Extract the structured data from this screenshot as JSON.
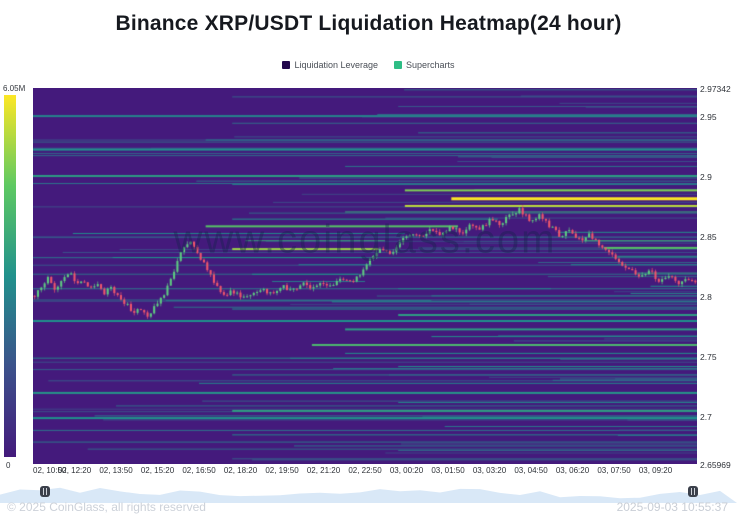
{
  "title": "Binance XRP/USDT Liquidation Heatmap(24 hour)",
  "legend": {
    "items": [
      {
        "label": "Liquidation Leverage",
        "color": "#23094d"
      },
      {
        "label": "Supercharts",
        "color": "#2ebd85"
      }
    ]
  },
  "colorbar": {
    "max_label": "6.05M",
    "min_label": "0"
  },
  "watermark": "www.coinglass.com",
  "footer": {
    "copyright": "© 2025 CoinGlass, all rights reserved",
    "timestamp": "2025-09-03 10:55:37"
  },
  "chart_data": {
    "type": "heatmap",
    "title": "Binance XRP/USDT Liquidation Heatmap(24 hour)",
    "legend_entries": [
      "Liquidation Leverage",
      "Supercharts"
    ],
    "y_range": [
      2.65969,
      2.97342
    ],
    "y_ticks": [
      [
        "2.97342",
        2.97342
      ],
      [
        "2.95",
        2.95
      ],
      [
        "2.9",
        2.9
      ],
      [
        "2.85",
        2.85
      ],
      [
        "2.8",
        2.8
      ],
      [
        "2.75",
        2.75
      ],
      [
        "2.7",
        2.7
      ],
      [
        "2.65969",
        2.65969
      ]
    ],
    "x_labels": [
      "02, 10:50",
      "02, 12:20",
      "02, 13:50",
      "02, 15:20",
      "02, 16:50",
      "02, 18:20",
      "02, 19:50",
      "02, 21:20",
      "02, 22:50",
      "03, 00:20",
      "03, 01:50",
      "03, 03:20",
      "03, 04:50",
      "03, 06:20",
      "03, 07:50",
      "03, 09:20"
    ],
    "colorbar": {
      "min": 0,
      "max": 6050000,
      "min_label": "0",
      "max_label": "6.05M"
    },
    "colors": {
      "candle_up": "#5ecb81",
      "candle_down": "#f0566c",
      "viridis": [
        [
          0,
          "#441a7c"
        ],
        [
          0.25,
          "#3b528b"
        ],
        [
          0.5,
          "#21918c"
        ],
        [
          0.75,
          "#5ec962"
        ],
        [
          1,
          "#fde725"
        ]
      ]
    },
    "heatmap_bands": [
      [
        2.966,
        0.3,
        1,
        0.3,
        1
      ],
      [
        2.958,
        0.55,
        1,
        0.28,
        1
      ],
      [
        2.95,
        0.0,
        1,
        0.45,
        2
      ],
      [
        2.944,
        0.3,
        1,
        0.35,
        1
      ],
      [
        2.936,
        0.58,
        1,
        0.38,
        1
      ],
      [
        2.93,
        0.26,
        1,
        0.42,
        1
      ],
      [
        2.922,
        0.0,
        1,
        0.5,
        2
      ],
      [
        2.916,
        0.64,
        1,
        0.35,
        1
      ],
      [
        2.908,
        0.47,
        1,
        0.4,
        1
      ],
      [
        2.9,
        0.0,
        1,
        0.55,
        2
      ],
      [
        2.893,
        0.3,
        1,
        0.45,
        1
      ],
      [
        2.888,
        0.56,
        1,
        0.8,
        2
      ],
      [
        2.881,
        0.63,
        1,
        1.0,
        3
      ],
      [
        2.875,
        0.56,
        1,
        0.9,
        2
      ],
      [
        2.87,
        0.47,
        1,
        0.6,
        1
      ],
      [
        2.864,
        0.3,
        0.7,
        0.5,
        1
      ],
      [
        2.858,
        0.26,
        0.64,
        0.72,
        2
      ],
      [
        2.852,
        0.06,
        0.56,
        0.48,
        1
      ],
      [
        2.846,
        0.32,
        0.53,
        0.6,
        1
      ],
      [
        2.839,
        0.3,
        0.52,
        0.85,
        2
      ],
      [
        2.832,
        0.12,
        0.5,
        0.5,
        1
      ],
      [
        2.826,
        0.4,
        0.51,
        0.42,
        1
      ],
      [
        2.818,
        0.33,
        0.49,
        0.5,
        1
      ],
      [
        2.853,
        0.79,
        1,
        0.5,
        1
      ],
      [
        2.846,
        0.83,
        1,
        0.62,
        1
      ],
      [
        2.84,
        0.86,
        1,
        0.72,
        2
      ],
      [
        2.833,
        0.88,
        1,
        0.52,
        1
      ],
      [
        2.826,
        0.81,
        1,
        0.45,
        1
      ],
      [
        2.819,
        0.91,
        1,
        0.55,
        1
      ],
      [
        2.812,
        0.36,
        0.5,
        0.42,
        1
      ],
      [
        2.808,
        0.93,
        1,
        0.5,
        1
      ],
      [
        2.806,
        0.55,
        0.78,
        0.45,
        1
      ],
      [
        2.802,
        0.9,
        1,
        0.45,
        1
      ],
      [
        2.8,
        0.6,
        1,
        0.4,
        1
      ],
      [
        2.796,
        0.2,
        0.6,
        0.4,
        1
      ],
      [
        2.795,
        0.45,
        1,
        0.5,
        1
      ],
      [
        2.789,
        0.3,
        1,
        0.48,
        1
      ],
      [
        2.784,
        0.55,
        1,
        0.55,
        2
      ],
      [
        2.779,
        0.0,
        1,
        0.5,
        2
      ],
      [
        2.772,
        0.47,
        1,
        0.55,
        2
      ],
      [
        2.766,
        0.6,
        1,
        0.5,
        1
      ],
      [
        2.759,
        0.42,
        1,
        0.68,
        2
      ],
      [
        2.752,
        0.47,
        1,
        0.5,
        1
      ],
      [
        2.748,
        0.0,
        1,
        0.44,
        1
      ],
      [
        2.741,
        0.55,
        1,
        0.5,
        1
      ],
      [
        2.734,
        0.3,
        1,
        0.4,
        1
      ],
      [
        2.727,
        0.25,
        1,
        0.46,
        1
      ],
      [
        2.719,
        0.0,
        1,
        0.52,
        2
      ],
      [
        2.711,
        0.55,
        1,
        0.45,
        1
      ],
      [
        2.704,
        0.3,
        1,
        0.56,
        2
      ],
      [
        2.698,
        0.0,
        1,
        0.5,
        2
      ],
      [
        2.691,
        0.62,
        1,
        0.4,
        1
      ],
      [
        2.684,
        0.3,
        1,
        0.45,
        1
      ],
      [
        2.678,
        0.0,
        1,
        0.4,
        1
      ],
      [
        2.671,
        0.55,
        1,
        0.34,
        1
      ],
      [
        2.664,
        0.3,
        1,
        0.3,
        1
      ]
    ],
    "price_path": [
      [
        0.0,
        2.8
      ],
      [
        0.01,
        2.808
      ],
      [
        0.02,
        2.815
      ],
      [
        0.03,
        2.805
      ],
      [
        0.04,
        2.812
      ],
      [
        0.055,
        2.818
      ],
      [
        0.065,
        2.81
      ],
      [
        0.075,
        2.812
      ],
      [
        0.085,
        2.806
      ],
      [
        0.095,
        2.81
      ],
      [
        0.105,
        2.802
      ],
      [
        0.115,
        2.806
      ],
      [
        0.13,
        2.798
      ],
      [
        0.14,
        2.792
      ],
      [
        0.15,
        2.786
      ],
      [
        0.16,
        2.79
      ],
      [
        0.17,
        2.782
      ],
      [
        0.18,
        2.79
      ],
      [
        0.195,
        2.8
      ],
      [
        0.205,
        2.812
      ],
      [
        0.215,
        2.828
      ],
      [
        0.225,
        2.84
      ],
      [
        0.235,
        2.846
      ],
      [
        0.245,
        2.836
      ],
      [
        0.255,
        2.828
      ],
      [
        0.265,
        2.82
      ],
      [
        0.275,
        2.808
      ],
      [
        0.285,
        2.8
      ],
      [
        0.3,
        2.804
      ],
      [
        0.315,
        2.798
      ],
      [
        0.33,
        2.802
      ],
      [
        0.345,
        2.806
      ],
      [
        0.36,
        2.8
      ],
      [
        0.375,
        2.808
      ],
      [
        0.39,
        2.804
      ],
      [
        0.405,
        2.81
      ],
      [
        0.42,
        2.806
      ],
      [
        0.435,
        2.812
      ],
      [
        0.45,
        2.808
      ],
      [
        0.465,
        2.814
      ],
      [
        0.48,
        2.81
      ],
      [
        0.495,
        2.82
      ],
      [
        0.51,
        2.832
      ],
      [
        0.525,
        2.84
      ],
      [
        0.54,
        2.836
      ],
      [
        0.555,
        2.846
      ],
      [
        0.57,
        2.852
      ],
      [
        0.585,
        2.848
      ],
      [
        0.6,
        2.855
      ],
      [
        0.615,
        2.85
      ],
      [
        0.63,
        2.858
      ],
      [
        0.645,
        2.852
      ],
      [
        0.66,
        2.86
      ],
      [
        0.675,
        2.856
      ],
      [
        0.69,
        2.864
      ],
      [
        0.705,
        2.86
      ],
      [
        0.72,
        2.868
      ],
      [
        0.735,
        2.872
      ],
      [
        0.75,
        2.862
      ],
      [
        0.765,
        2.868
      ],
      [
        0.78,
        2.858
      ],
      [
        0.795,
        2.85
      ],
      [
        0.81,
        2.856
      ],
      [
        0.825,
        2.846
      ],
      [
        0.84,
        2.852
      ],
      [
        0.855,
        2.842
      ],
      [
        0.87,
        2.835
      ],
      [
        0.885,
        2.828
      ],
      [
        0.9,
        2.822
      ],
      [
        0.915,
        2.816
      ],
      [
        0.93,
        2.822
      ],
      [
        0.945,
        2.812
      ],
      [
        0.96,
        2.818
      ],
      [
        0.975,
        2.81
      ],
      [
        0.99,
        2.814
      ],
      [
        1.0,
        2.812
      ]
    ],
    "candle_count": 200
  }
}
